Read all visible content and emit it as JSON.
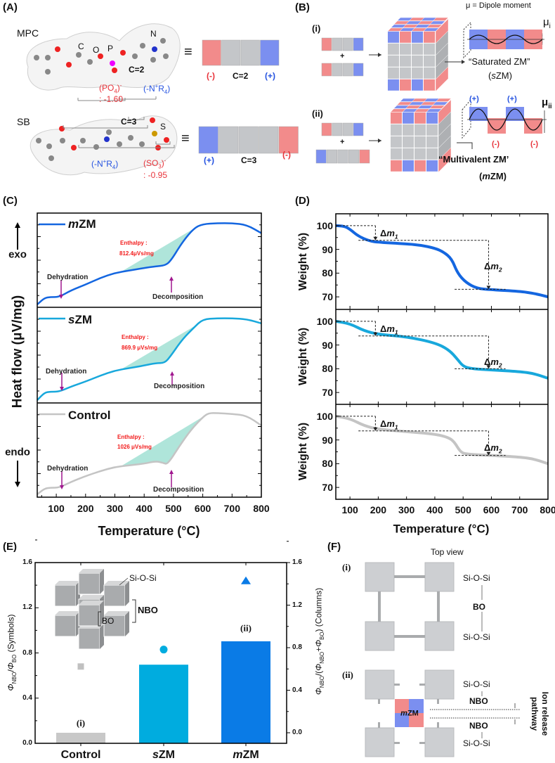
{
  "panel_labels": {
    "a": "(A)",
    "b": "(B)",
    "c": "(C)",
    "d": "(D)",
    "e": "(E)",
    "f": "(F)"
  },
  "panel_a": {
    "mpc": {
      "name": "MPC",
      "atom_c": "C",
      "atom_o": "O",
      "atom_p": "P",
      "atom_n": "N",
      "spacer": "C=2",
      "anion": {
        "open": "(PO",
        "sub": "4",
        "close": ")",
        "sup": "-",
        "charge": ": -1.60"
      },
      "cation": {
        "open": "(-N",
        "sup": "+",
        "mid": "R",
        "sub": "4",
        "close": ")"
      },
      "equiv": "≡",
      "bar_labels": {
        "neg": "(-)",
        "mid": "C=2",
        "pos": "(+)"
      }
    },
    "sb": {
      "name": "SB",
      "atom_s": "S",
      "spacer": "C=3",
      "anion": {
        "open": "(SO",
        "sub": "3",
        "close": ")",
        "sup": "-",
        "charge": ": -0.95"
      },
      "cation": {
        "open": "(-N",
        "sup": "+",
        "mid": "R",
        "sub": "4",
        "close": ")"
      },
      "equiv": "≡",
      "bar_labels": {
        "pos": "(+)",
        "mid": "C=3",
        "neg": "(-)"
      }
    }
  },
  "panel_b": {
    "legend": "μ = Dipole moment",
    "i": {
      "label": "(i)",
      "plus": "+",
      "mu": "μ",
      "mu_sub": "i",
      "name_open": "“Saturated ZM”",
      "abbr_open": "(",
      "abbr_it": "s",
      "abbr_close": "ZM)"
    },
    "ii": {
      "label": "(ii)",
      "plus": "+",
      "mu": "μ",
      "mu_sub": "ii",
      "pos": "(+)",
      "neg": "(-)",
      "name_open": "“Multivalent ZM’",
      "abbr_open": "(",
      "abbr_it": "m",
      "abbr_close": "ZM)"
    },
    "colors": {
      "negative": "#f28b8b",
      "positive": "#7b8ff0",
      "neutral": "#c4c6c9"
    }
  },
  "panel_c": {
    "exo": "exo",
    "endo": "endo",
    "annotations": {
      "dehydration": "Dehydration",
      "decomposition": "Decomposition",
      "enthalpy": "Enthalpy :"
    }
  },
  "panel_e": {
    "inset": {
      "siosi": "Si-O-Si",
      "nbo": "NBO",
      "bo": "BO"
    },
    "marks": {
      "i": "(i)",
      "ii": "(ii)"
    }
  },
  "panel_f": {
    "top_view": "Top view",
    "i": "(i)",
    "ii": "(ii)",
    "siosi": "Si-O-Si",
    "bo": "BO",
    "nbo": "NBO",
    "mzm_it": "m",
    "mzm_rest": "ZM",
    "ion_release_1": "Ion release",
    "ion_release_2": "pathway"
  },
  "chart_data": [
    {
      "id": "C",
      "type": "line",
      "title": "",
      "xlabel": "Temperature (°C)",
      "ylabel": "Heat flow (μV/mg)",
      "xlim": [
        35,
        800
      ],
      "xticks": [
        100,
        200,
        300,
        400,
        500,
        600,
        700,
        800
      ],
      "y_units": "normalized (no tick labels)",
      "grid": false,
      "series": [
        {
          "name_it": "m",
          "name": "ZM",
          "color": "#1466e0",
          "enthalpy_value": "812.4μVs/mg",
          "shade_range": [
            320,
            580
          ],
          "x": [
            35,
            60,
            80,
            110,
            150,
            200,
            250,
            300,
            350,
            400,
            440,
            470,
            490,
            530,
            570,
            600,
            650,
            700,
            750,
            800
          ],
          "y": [
            0.0,
            0.08,
            0.09,
            0.09,
            0.17,
            0.24,
            0.32,
            0.38,
            0.41,
            0.44,
            0.46,
            0.47,
            0.52,
            0.75,
            0.92,
            0.97,
            0.98,
            0.98,
            0.96,
            0.86
          ]
        },
        {
          "name_it": "s",
          "name": "ZM",
          "color": "#18a8dc",
          "enthalpy_value": "869.9 μVs/mg",
          "shade_range": [
            320,
            580
          ],
          "x": [
            35,
            60,
            80,
            110,
            150,
            200,
            250,
            300,
            350,
            400,
            440,
            470,
            490,
            530,
            570,
            600,
            650,
            700,
            750,
            800
          ],
          "y": [
            0.0,
            0.09,
            0.1,
            0.1,
            0.16,
            0.22,
            0.29,
            0.35,
            0.38,
            0.41,
            0.44,
            0.44,
            0.52,
            0.72,
            0.86,
            0.96,
            0.97,
            0.97,
            0.96,
            0.91
          ]
        },
        {
          "name_it": "",
          "name": "Control",
          "color": "#c4c4c4",
          "enthalpy_value": "1026 μVs/mg",
          "shade_range": [
            320,
            612
          ],
          "x": [
            35,
            60,
            80,
            110,
            150,
            200,
            250,
            300,
            350,
            400,
            440,
            465,
            480,
            520,
            560,
            600,
            620,
            650,
            700,
            750,
            800
          ],
          "y": [
            0.0,
            0.07,
            0.08,
            0.08,
            0.15,
            0.22,
            0.28,
            0.33,
            0.35,
            0.37,
            0.4,
            0.38,
            0.36,
            0.58,
            0.78,
            0.93,
            0.98,
            0.98,
            0.97,
            0.95,
            0.83
          ]
        }
      ]
    },
    {
      "id": "D",
      "type": "line",
      "title": "",
      "xlabel": "Temperature (°C)",
      "ylabel": "Weight (%)",
      "xlim": [
        50,
        800
      ],
      "ylim": [
        65,
        105
      ],
      "xticks": [
        100,
        200,
        300,
        400,
        500,
        600,
        700,
        800
      ],
      "yticks": [
        70,
        80,
        90,
        100
      ],
      "delta_labels": {
        "d": "Δ",
        "m": "m",
        "one": "1",
        "two": "2"
      },
      "series": [
        {
          "name": "mZM",
          "color": "#1466e0",
          "plateau1": 93.8,
          "plateau2": 73.2,
          "x": [
            50,
            80,
            100,
            130,
            170,
            200,
            300,
            350,
            400,
            430,
            460,
            480,
            510,
            550,
            600,
            700,
            750,
            800
          ],
          "y": [
            100,
            99.8,
            98.5,
            95.5,
            93.5,
            93,
            92.3,
            91.8,
            90.5,
            89,
            86,
            80,
            76,
            73.5,
            73,
            72.3,
            71.5,
            70
          ]
        },
        {
          "name": "sZM",
          "color": "#18a8dc",
          "plateau1": 93.8,
          "plateau2": 80,
          "x": [
            50,
            100,
            150,
            200,
            300,
            400,
            450,
            480,
            500,
            530,
            600,
            700,
            750,
            800
          ],
          "y": [
            100,
            99,
            96,
            94.5,
            93.5,
            91,
            88,
            84,
            81,
            80,
            79.5,
            78.8,
            78,
            76
          ]
        },
        {
          "name": "Control",
          "color": "#c4c4c4",
          "plateau1": 93.8,
          "plateau2": 83.5,
          "x": [
            50,
            100,
            150,
            200,
            300,
            400,
            450,
            470,
            490,
            510,
            600,
            700,
            750,
            800
          ],
          "y": [
            100,
            99,
            96,
            94.5,
            93.5,
            92.5,
            91,
            89,
            85,
            84,
            83.5,
            82.8,
            82,
            80
          ]
        }
      ]
    },
    {
      "id": "E",
      "type": "bar",
      "categories": [
        {
          "it": "",
          "rest": "Control"
        },
        {
          "it": "s",
          "rest": "ZM"
        },
        {
          "it": "m",
          "rest": "ZM"
        }
      ],
      "columns": {
        "label": "ΦNBO/(ΦNBO+ΦBO) (Columns)",
        "values": [
          0.0,
          0.64,
          0.86
        ],
        "colors": [
          "#c8c8c8",
          "#00acdf",
          "#0a7be6"
        ],
        "ylim": [
          -0.1,
          1.6
        ]
      },
      "symbols": {
        "label": "ΦNBO/ΦBO (Symbols)",
        "values": [
          0.68,
          0.83,
          1.44
        ],
        "shapes": [
          "square",
          "circle",
          "triangle"
        ],
        "colors": [
          "#c0c0c0",
          "#00acdf",
          "#0a7be6"
        ],
        "ylim": [
          0,
          1.6
        ]
      },
      "left_ylabel": {
        "phi": "Φ",
        "nbo": "NBO",
        "slash": "/",
        "bo": "BO",
        "tail": " (Symbols)"
      },
      "right_ylabel": {
        "phi": "Φ",
        "nbo": "NBO",
        "open": "/(",
        "plus": "+",
        "close": ")",
        "bo": "BO",
        "tail": " (Columns)"
      },
      "yticks": [
        "0.0",
        "0.4",
        "0.8",
        "1.2",
        "1.6"
      ]
    }
  ]
}
